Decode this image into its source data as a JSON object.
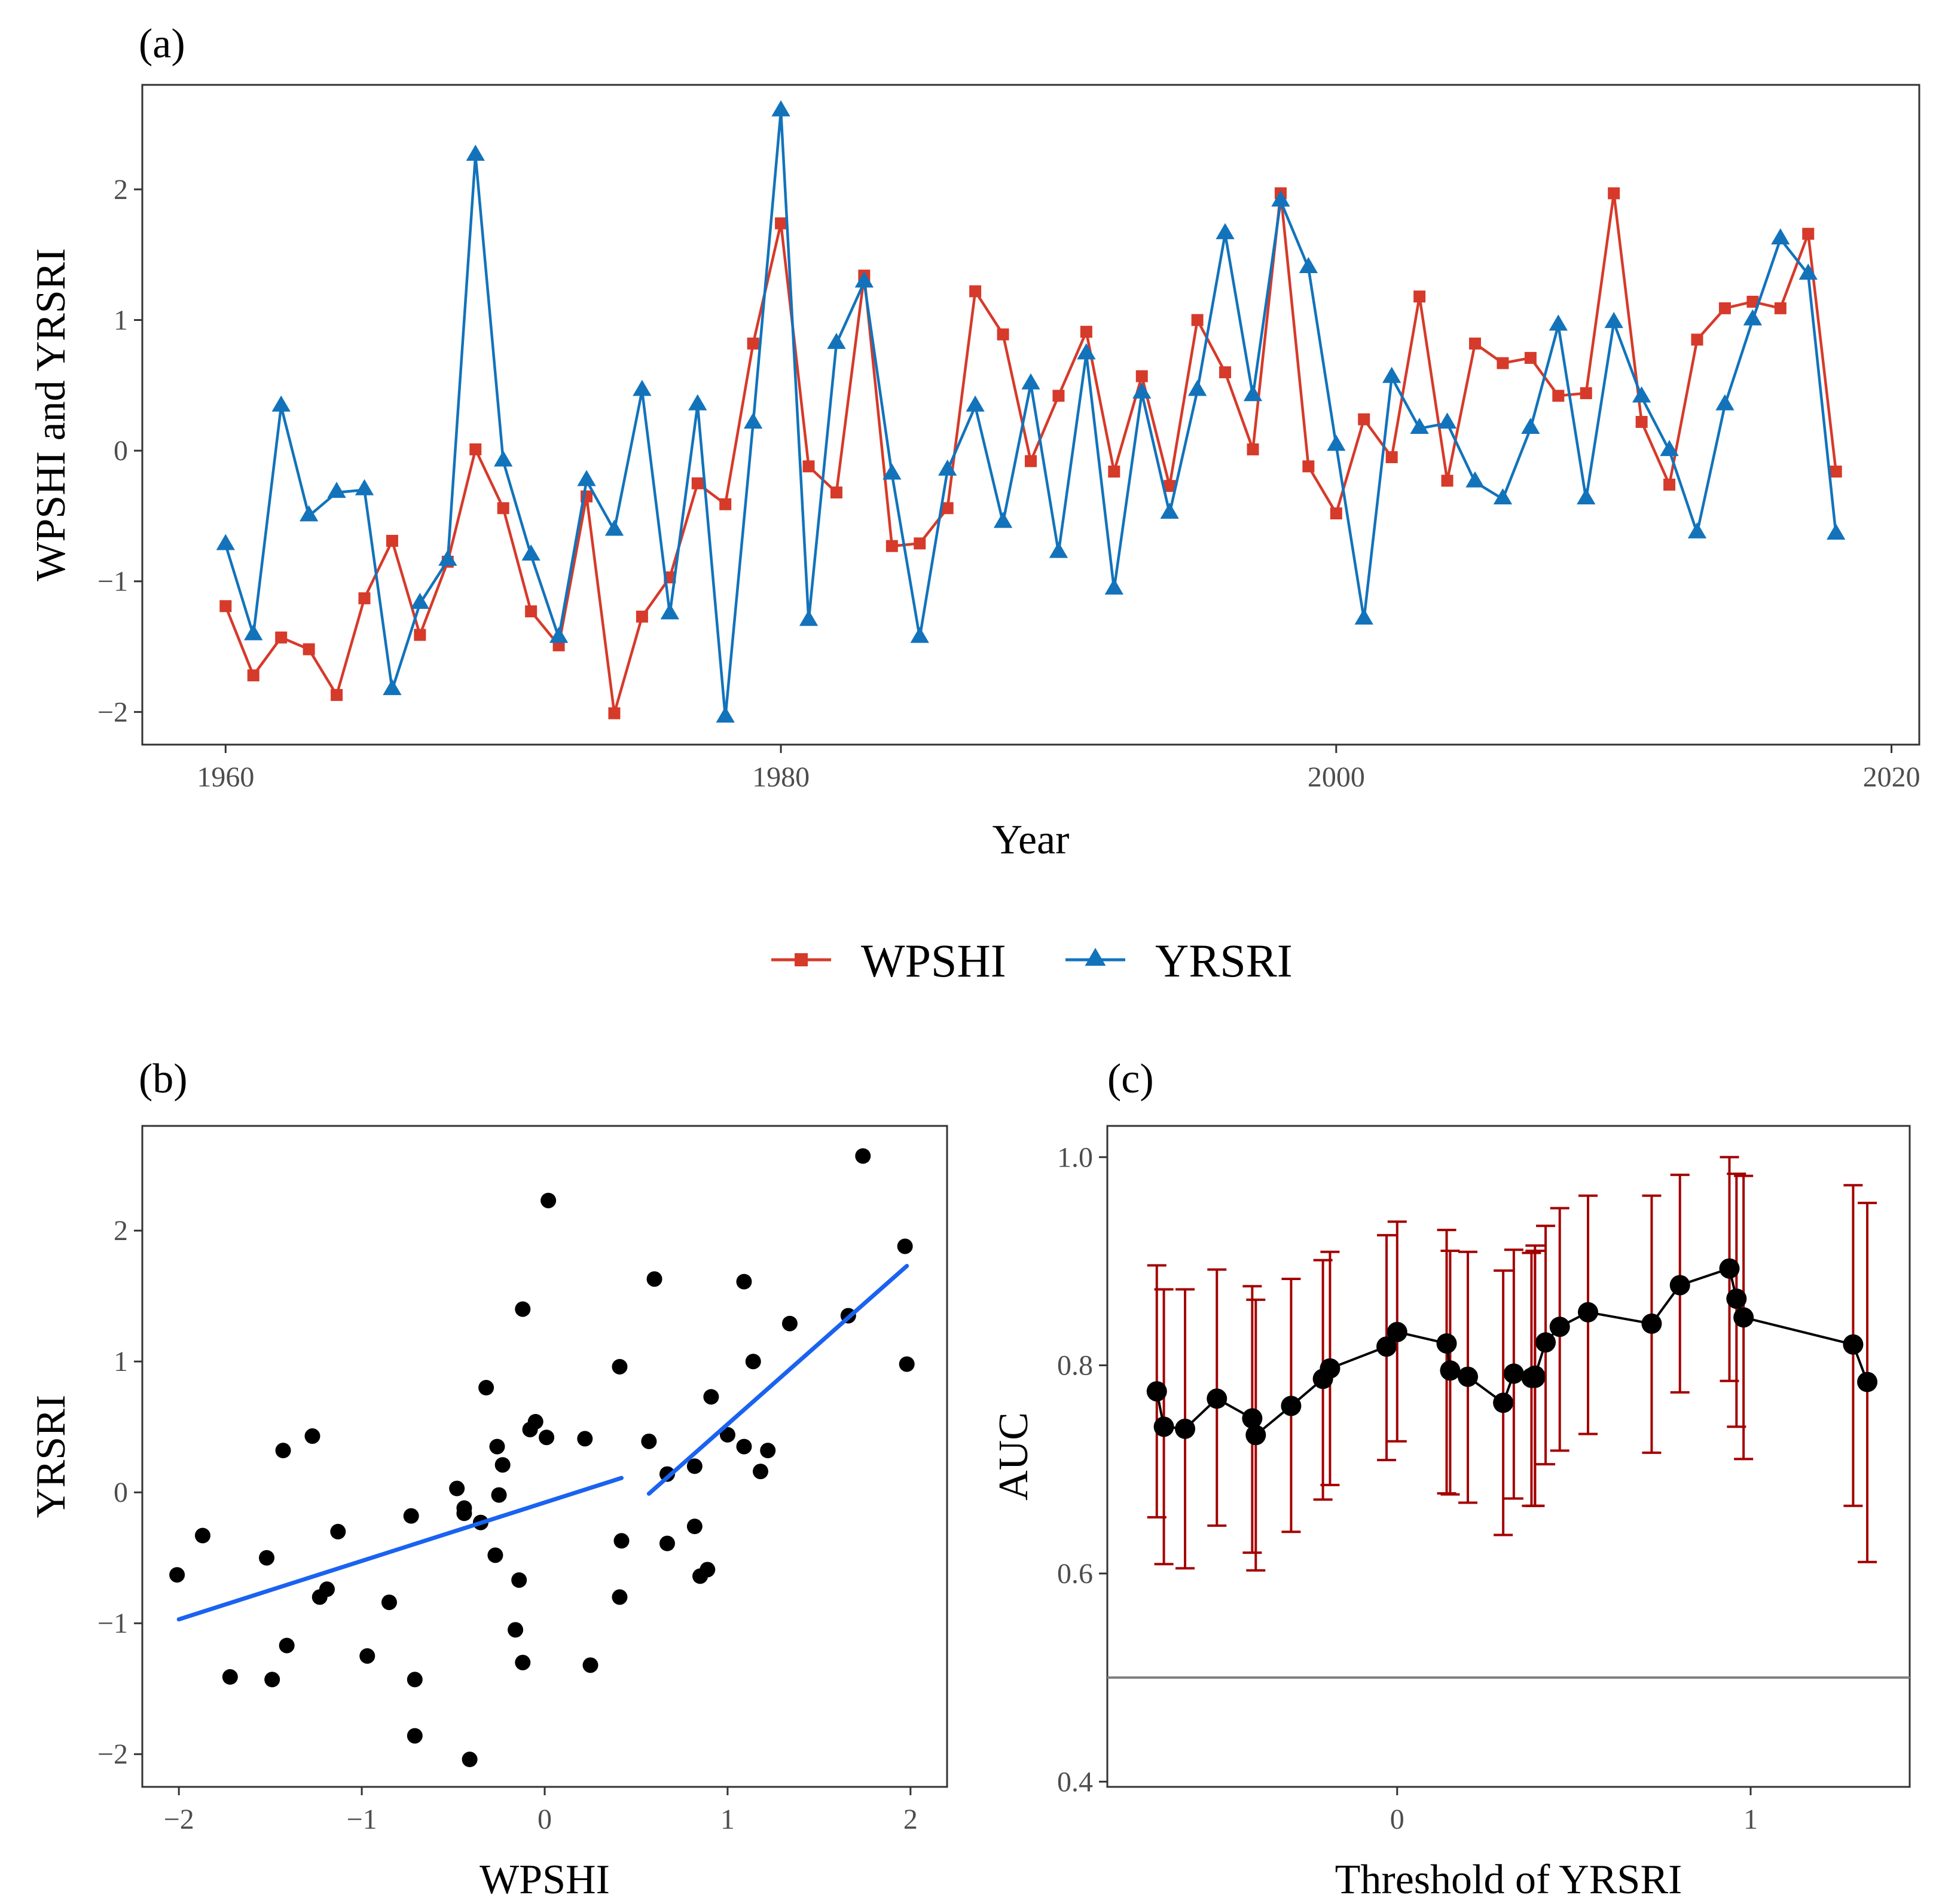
{
  "colors": {
    "wpshi": "#D63A2A",
    "yrsri": "#1273BB",
    "fit": "#1A62F0",
    "points": "#000000",
    "error": "#A30000",
    "reference": "#7F7F7F"
  },
  "legend": {
    "position": "bottom",
    "items": [
      {
        "label": "WPSHI",
        "marker": "square",
        "color": "#D63A2A"
      },
      {
        "label": "YRSRI",
        "marker": "triangle",
        "color": "#1273BB"
      }
    ]
  },
  "chart_data": [
    {
      "panel": "(a)",
      "type": "line",
      "xlabel": "Year",
      "ylabel": "WPSHI and YRSRI",
      "xlim": [
        1957,
        2021
      ],
      "ylim": [
        -2.25,
        2.8
      ],
      "xticks": [
        "1960",
        "1980",
        "2000",
        "2020"
      ],
      "yticks": [
        "−2",
        "−1",
        "0",
        "1",
        "2"
      ],
      "grid": false,
      "x": [
        1960,
        1961,
        1962,
        1963,
        1964,
        1965,
        1966,
        1967,
        1968,
        1969,
        1970,
        1971,
        1972,
        1973,
        1974,
        1975,
        1976,
        1977,
        1978,
        1979,
        1980,
        1981,
        1982,
        1983,
        1984,
        1985,
        1986,
        1987,
        1988,
        1989,
        1990,
        1991,
        1992,
        1993,
        1994,
        1995,
        1996,
        1997,
        1998,
        1999,
        2000,
        2001,
        2002,
        2003,
        2004,
        2005,
        2006,
        2007,
        2008,
        2009,
        2010,
        2011,
        2012,
        2013,
        2014,
        2015,
        2016,
        2017,
        2018
      ],
      "series": [
        {
          "name": "WPSHI",
          "marker": "square",
          "values": [
            -1.19,
            -1.72,
            -1.43,
            -1.52,
            -1.87,
            -1.13,
            -0.69,
            -1.41,
            -0.85,
            0.01,
            -0.44,
            -1.23,
            -1.49,
            -0.35,
            -2.01,
            -1.27,
            -0.97,
            -0.25,
            -0.41,
            0.82,
            1.74,
            -0.12,
            -0.32,
            1.34,
            -0.73,
            -0.71,
            -0.44,
            1.22,
            0.89,
            -0.08,
            0.42,
            0.91,
            -0.16,
            0.57,
            -0.27,
            1.0,
            0.6,
            0.01,
            1.97,
            -0.12,
            -0.48,
            0.24,
            -0.05,
            1.18,
            -0.23,
            0.82,
            0.67,
            0.71,
            0.42,
            0.44,
            1.97,
            0.22,
            -0.26,
            0.85,
            1.09,
            1.14,
            1.09,
            1.66,
            -0.16
          ]
        },
        {
          "name": "YRSRI",
          "marker": "triangle",
          "values": [
            -0.72,
            -1.41,
            0.34,
            -0.5,
            -0.32,
            -0.3,
            -1.83,
            -1.17,
            -0.84,
            2.26,
            -0.08,
            -0.8,
            -1.43,
            -0.23,
            -0.61,
            0.46,
            -1.25,
            0.35,
            -2.04,
            0.21,
            2.6,
            -1.3,
            0.82,
            1.29,
            -0.18,
            -1.43,
            -0.15,
            0.34,
            -0.55,
            0.51,
            -0.78,
            0.74,
            -1.06,
            0.44,
            -0.48,
            0.46,
            1.66,
            0.42,
            1.91,
            1.4,
            0.04,
            -1.29,
            0.56,
            0.17,
            0.21,
            -0.24,
            -0.37,
            0.17,
            0.96,
            -0.37,
            0.98,
            0.41,
            0.0,
            -0.63,
            0.35,
            1.0,
            1.62,
            1.35,
            -0.64
          ]
        }
      ]
    },
    {
      "panel": "(b)",
      "type": "scatter",
      "xlabel": "WPSHI",
      "ylabel": "YRSRI",
      "xlim": [
        -2.2,
        2.2
      ],
      "ylim": [
        -2.25,
        2.8
      ],
      "xticks": [
        "−2",
        "−1",
        "0",
        "1",
        "2"
      ],
      "yticks": [
        "−2",
        "−1",
        "0",
        "1",
        "2"
      ],
      "grid": false,
      "points": [
        [
          -2.01,
          -0.63
        ],
        [
          -1.87,
          -0.33
        ],
        [
          -1.72,
          -1.41
        ],
        [
          -1.52,
          -0.5
        ],
        [
          -1.49,
          -1.43
        ],
        [
          -1.43,
          0.32
        ],
        [
          -1.41,
          -1.17
        ],
        [
          -1.27,
          0.43
        ],
        [
          -1.23,
          -0.8
        ],
        [
          -1.19,
          -0.74
        ],
        [
          -1.13,
          -0.3
        ],
        [
          -0.97,
          -1.25
        ],
        [
          -0.85,
          -0.84
        ],
        [
          -0.73,
          -0.18
        ],
        [
          -0.71,
          -1.43
        ],
        [
          -0.71,
          -1.86
        ],
        [
          -0.48,
          0.03
        ],
        [
          -0.44,
          -0.12
        ],
        [
          -0.44,
          -0.16
        ],
        [
          -0.41,
          -2.04
        ],
        [
          -0.35,
          -0.23
        ],
        [
          -0.32,
          0.8
        ],
        [
          -0.27,
          -0.48
        ],
        [
          -0.26,
          0.35
        ],
        [
          -0.25,
          -0.02
        ],
        [
          -0.23,
          0.21
        ],
        [
          -0.16,
          -1.05
        ],
        [
          -0.14,
          -0.67
        ],
        [
          -0.12,
          -1.3
        ],
        [
          -0.12,
          1.4
        ],
        [
          -0.08,
          0.48
        ],
        [
          -0.05,
          0.54
        ],
        [
          0.01,
          0.42
        ],
        [
          0.02,
          2.23
        ],
        [
          0.22,
          0.41
        ],
        [
          0.25,
          -1.32
        ],
        [
          0.41,
          0.96
        ],
        [
          0.42,
          -0.37
        ],
        [
          0.41,
          -0.8
        ],
        [
          0.57,
          0.39
        ],
        [
          0.6,
          1.63
        ],
        [
          0.67,
          0.14
        ],
        [
          0.67,
          -0.39
        ],
        [
          0.82,
          0.2
        ],
        [
          0.82,
          -0.26
        ],
        [
          0.85,
          -0.64
        ],
        [
          0.89,
          -0.59
        ],
        [
          0.91,
          0.73
        ],
        [
          1.0,
          0.44
        ],
        [
          1.09,
          1.61
        ],
        [
          1.09,
          0.35
        ],
        [
          1.14,
          1.0
        ],
        [
          1.18,
          0.16
        ],
        [
          1.22,
          0.32
        ],
        [
          1.34,
          1.29
        ],
        [
          1.66,
          1.35
        ],
        [
          1.74,
          2.57
        ],
        [
          1.97,
          1.88
        ],
        [
          1.98,
          0.98
        ]
      ],
      "fit_segments": [
        {
          "x": [
            -2.0,
            0.42
          ],
          "y": [
            -0.97,
            0.11
          ]
        },
        {
          "x": [
            0.57,
            1.98
          ],
          "y": [
            -0.01,
            1.73
          ]
        }
      ]
    },
    {
      "panel": "(c)",
      "type": "line",
      "xlabel": "Threshold of YRSRI",
      "ylabel": "AUC",
      "xlim": [
        -0.82,
        1.45
      ],
      "ylim": [
        0.395,
        1.03
      ],
      "xticks": [
        "0",
        "1"
      ],
      "yticks": [
        "0.4",
        "0.6",
        "0.8",
        "1.0"
      ],
      "grid": false,
      "reference_line": 0.5,
      "x": [
        -0.68,
        -0.66,
        -0.6,
        -0.51,
        -0.41,
        -0.4,
        -0.3,
        -0.21,
        -0.19,
        -0.03,
        0.0,
        0.14,
        0.15,
        0.2,
        0.3,
        0.33,
        0.38,
        0.39,
        0.39,
        0.42,
        0.46,
        0.54,
        0.72,
        0.8,
        0.94,
        0.96,
        0.98,
        1.29,
        1.33
      ],
      "auc": [
        0.775,
        0.741,
        0.739,
        0.768,
        0.749,
        0.733,
        0.761,
        0.787,
        0.797,
        0.818,
        0.832,
        0.821,
        0.795,
        0.789,
        0.764,
        0.792,
        0.788,
        0.788,
        0.79,
        0.822,
        0.837,
        0.851,
        0.84,
        0.877,
        0.893,
        0.864,
        0.846,
        0.82,
        0.784
      ],
      "lower": [
        0.654,
        0.609,
        0.605,
        0.646,
        0.62,
        0.603,
        0.64,
        0.671,
        0.685,
        0.709,
        0.727,
        0.677,
        0.676,
        0.668,
        0.637,
        0.672,
        0.665,
        0.665,
        0.665,
        0.705,
        0.718,
        0.734,
        0.716,
        0.774,
        0.785,
        0.741,
        0.71,
        0.665,
        0.611
      ],
      "upper": [
        0.896,
        0.873,
        0.873,
        0.892,
        0.876,
        0.863,
        0.883,
        0.901,
        0.909,
        0.925,
        0.938,
        0.93,
        0.91,
        0.909,
        0.891,
        0.911,
        0.908,
        0.91,
        0.915,
        0.934,
        0.951,
        0.963,
        0.963,
        0.983,
        1.0,
        0.984,
        0.982,
        0.973,
        0.956
      ]
    }
  ]
}
